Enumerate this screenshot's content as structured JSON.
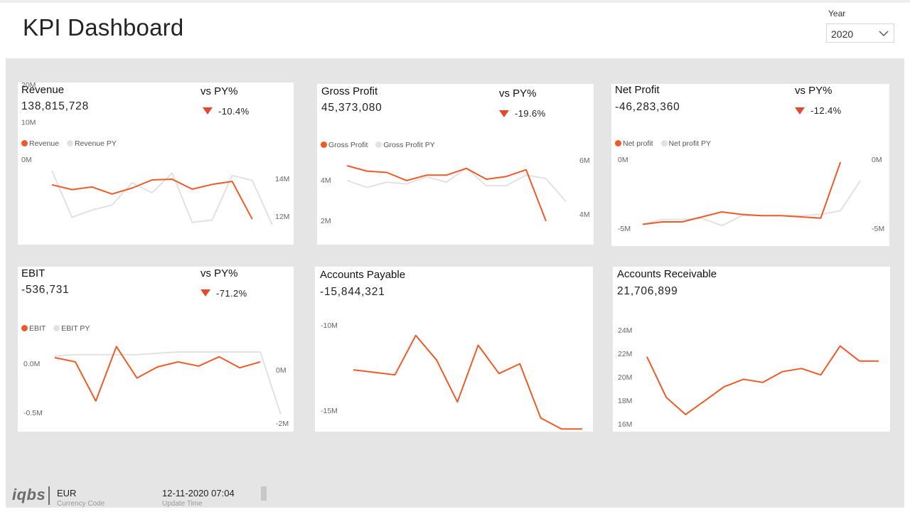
{
  "header": {
    "title": "KPI Dashboard"
  },
  "filter": {
    "label": "Year",
    "value": "2020",
    "icon": "chevron-down-icon"
  },
  "colors": {
    "accent": "#f05a28",
    "py": "#e2e2e2",
    "down": "#e5492d",
    "canvas": "#e5e5e5"
  },
  "cards": {
    "revenue": {
      "title": "Revenue",
      "value": "138,815,728",
      "vs_label": "vs PY%",
      "vs_value": "-10.4%",
      "legend": [
        "Revenue",
        "Revenue PY"
      ],
      "left_ticks": [
        "20M",
        "10M",
        "0M"
      ],
      "right_ticks": [
        "14M",
        "12M"
      ]
    },
    "gross_profit": {
      "title": "Gross Profit",
      "value": "45,373,080",
      "vs_label": "vs PY%",
      "vs_value": "-19.6%",
      "legend": [
        "Gross Profit",
        "Gross Profit PY"
      ],
      "left_ticks": [
        "4M",
        "2M"
      ],
      "right_ticks": [
        "6M",
        "4M"
      ]
    },
    "net_profit": {
      "title": "Net Profit",
      "value": "-46,283,360",
      "vs_label": "vs PY%",
      "vs_value": "-12.4%",
      "legend": [
        "Net profit",
        "Net profit PY"
      ],
      "left_ticks": [
        "0M",
        "-5M"
      ],
      "right_ticks": [
        "0M",
        "-5M"
      ]
    },
    "ebit": {
      "title": "EBIT",
      "value": "-536,731",
      "vs_label": "vs PY%",
      "vs_value": "-71.2%",
      "legend": [
        "EBIT",
        "EBIT PY"
      ],
      "left_ticks": [
        "0.0M",
        "-0.5M"
      ],
      "right_ticks": [
        "0M",
        "-2M"
      ]
    },
    "accounts_payable": {
      "title": "Accounts Payable",
      "value": "-15,844,321",
      "left_ticks": [
        "-10M",
        "-15M"
      ]
    },
    "accounts_receivable": {
      "title": "Accounts Receivable",
      "value": "21,706,899",
      "left_ticks": [
        "24M",
        "22M",
        "20M",
        "18M",
        "16M"
      ]
    }
  },
  "chart_data": [
    {
      "id": "revenue",
      "type": "line",
      "series": [
        {
          "name": "Revenue",
          "axis": "left",
          "values": [
            13.5,
            12.2,
            12.9,
            11.0,
            12.6,
            14.8,
            15.0,
            12.3,
            13.6,
            14.4,
            4.2
          ]
        },
        {
          "name": "Revenue PY",
          "axis": "right",
          "values": [
            14.1,
            12.2,
            12.5,
            12.7,
            13.6,
            13.2,
            14.0,
            12.0,
            12.1,
            13.9,
            13.7,
            11.9
          ]
        }
      ],
      "left_range": [
        0,
        20
      ],
      "right_range": [
        11.5,
        14.5
      ]
    },
    {
      "id": "gross_profit",
      "type": "line",
      "series": [
        {
          "name": "Gross Profit",
          "axis": "left",
          "values": [
            5.0,
            4.6,
            4.5,
            3.9,
            4.3,
            4.3,
            4.8,
            4.0,
            4.2,
            4.7,
            0.9
          ]
        },
        {
          "name": "Gross Profit PY",
          "axis": "right",
          "values": [
            5.0,
            4.6,
            4.9,
            4.8,
            5.2,
            4.9,
            5.7,
            4.7,
            4.7,
            5.3,
            5.1,
            3.8
          ]
        }
      ],
      "left_range": [
        0,
        6
      ],
      "right_range": [
        2,
        6.6
      ]
    },
    {
      "id": "net_profit",
      "type": "line",
      "series": [
        {
          "name": "Net profit",
          "axis": "left",
          "values": [
            -5.0,
            -4.8,
            -4.8,
            -4.4,
            -4.0,
            -4.2,
            -4.3,
            -4.3,
            -4.4,
            -4.5,
            0.0
          ]
        },
        {
          "name": "Net profit PY",
          "axis": "right",
          "values": [
            -5.0,
            -4.6,
            -4.6,
            -4.5,
            -5.1,
            -4.3,
            -4.3,
            -4.3,
            -4.3,
            -4.2,
            -3.9,
            -1.5
          ]
        }
      ],
      "left_range": [
        -5.6,
        0.8
      ],
      "right_range": [
        -5.6,
        0.8
      ]
    },
    {
      "id": "ebit",
      "type": "line",
      "series": [
        {
          "name": "EBIT",
          "axis": "left",
          "values": [
            0.05,
            0.0,
            -0.46,
            0.18,
            -0.19,
            -0.06,
            0.0,
            -0.05,
            0.06,
            -0.07,
            0.0
          ]
        },
        {
          "name": "EBIT PY",
          "axis": "right",
          "values": [
            -0.15,
            -0.1,
            -0.1,
            -0.1,
            -0.1,
            -0.05,
            0.0,
            0.0,
            0.0,
            0.0,
            0.0,
            -2.4
          ]
        }
      ],
      "left_range": [
        -0.62,
        0.3
      ],
      "right_range": [
        -2.4,
        0.6
      ]
    },
    {
      "id": "accounts_payable",
      "type": "line",
      "series": [
        {
          "name": "Accounts Payable",
          "axis": "left",
          "values": [
            -12.1,
            -12.3,
            -12.5,
            -9.3,
            -11.3,
            -14.7,
            -10.1,
            -12.4,
            -11.6,
            -16.0,
            -16.9,
            -16.9
          ]
        }
      ],
      "left_range": [
        -17.0,
        -8.8
      ]
    },
    {
      "id": "accounts_receivable",
      "type": "line",
      "series": [
        {
          "name": "Accounts Receivable",
          "axis": "left",
          "values": [
            22.1,
            18.3,
            16.7,
            18.0,
            19.3,
            20.0,
            19.7,
            20.7,
            21.0,
            20.4,
            23.1,
            21.7,
            21.7
          ]
        }
      ],
      "left_range": [
        15.5,
        25.2
      ]
    }
  ],
  "footer": {
    "logo": "iqbs",
    "currency_value": "EUR",
    "currency_label": "Currency Code",
    "update_value": "12-11-2020 07:04",
    "update_label": "Update Time"
  }
}
